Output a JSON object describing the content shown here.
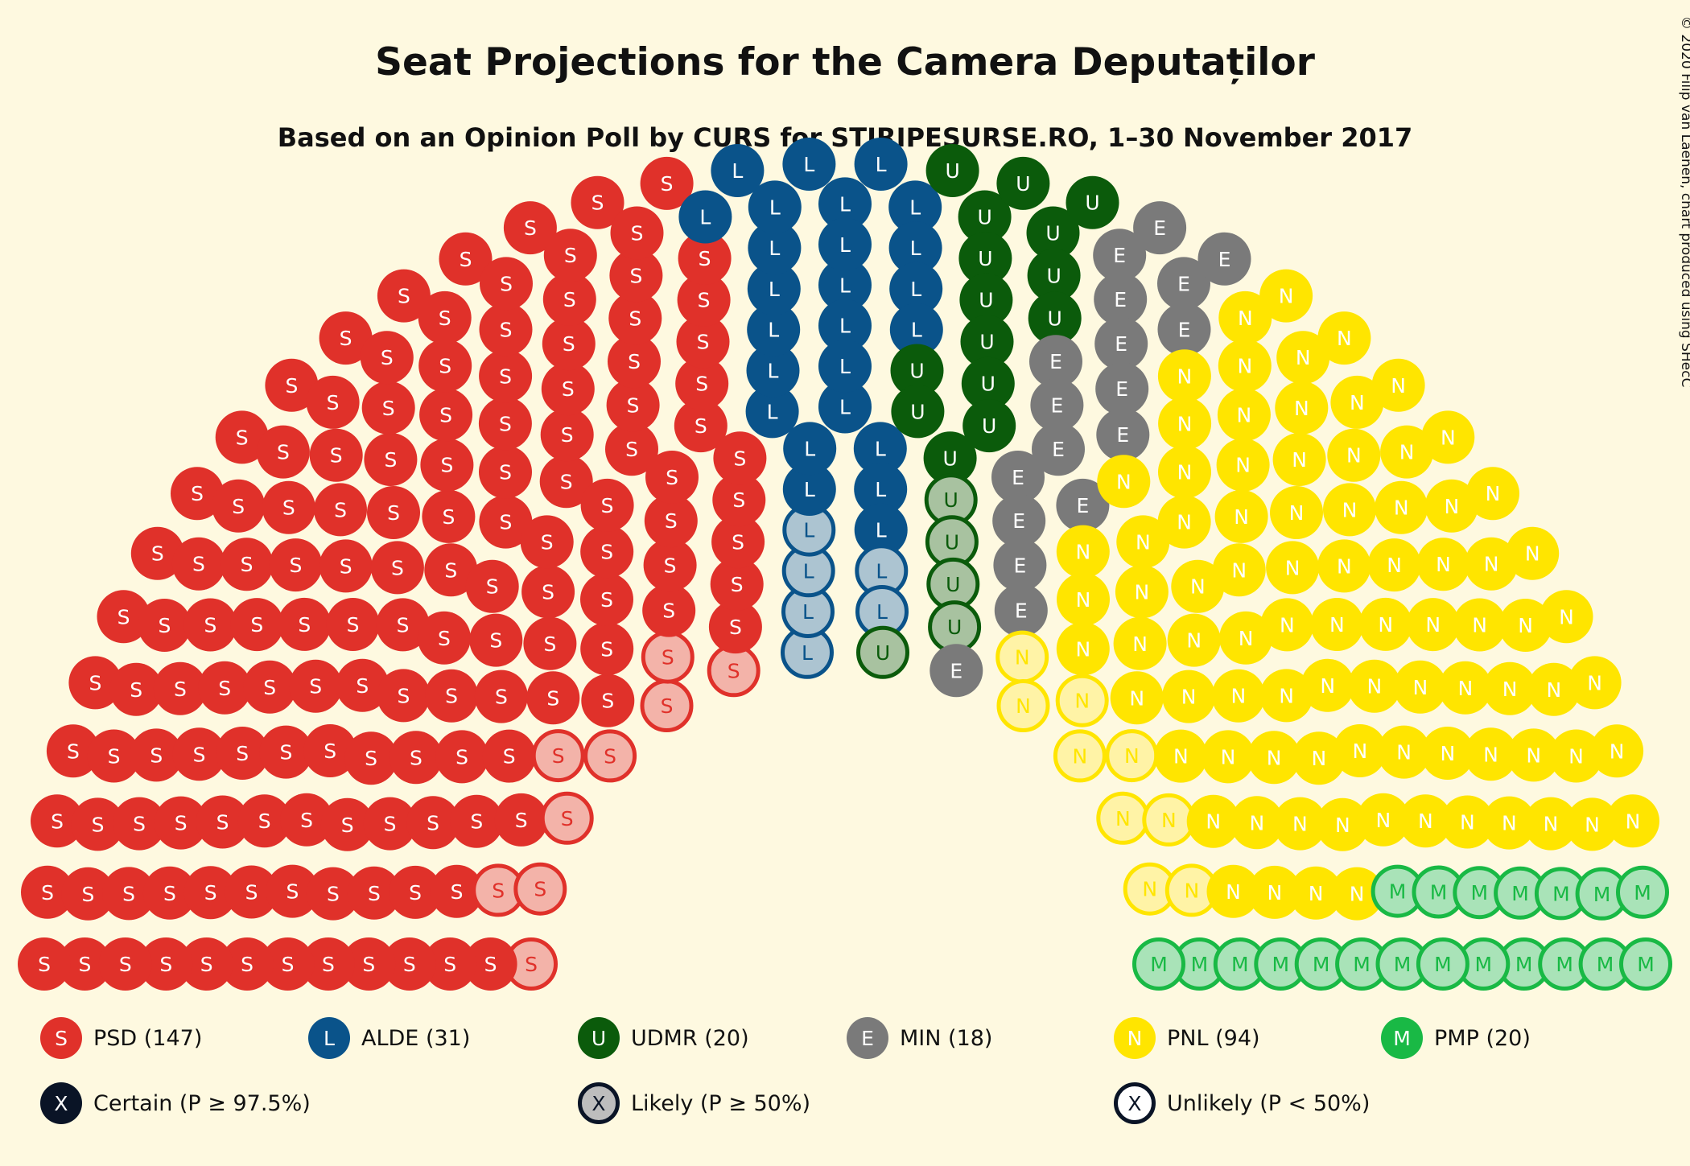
{
  "chart_data": {
    "type": "hemicycle",
    "title": "Seat Projections for the Camera Deputaților",
    "subtitle": "Based on an Opinion Poll by CURS for STIRIPESURSE.RO, 1–30 November 2017",
    "copyright": "© 2020 Filip van Laenen, chart produced using SHecC",
    "total_seats": 330,
    "parties": [
      {
        "letter": "S",
        "label": "PSD (147)",
        "seats": 147,
        "certain": 138,
        "likely": 9,
        "unlikely": 0,
        "color": "#E0312A",
        "light": "#F3B3A9",
        "text": "#FFFFFF"
      },
      {
        "letter": "L",
        "label": "ALDE (31)",
        "seats": 31,
        "certain": 25,
        "likely": 6,
        "unlikely": 0,
        "color": "#0A538A",
        "light": "#ACC4D1",
        "text": "#FFFFFF"
      },
      {
        "letter": "U",
        "label": "UDMR (20)",
        "seats": 20,
        "certain": 15,
        "likely": 5,
        "unlikely": 0,
        "color": "#0B5B0B",
        "light": "#A8C2A0",
        "text": "#FFFFFF"
      },
      {
        "letter": "E",
        "label": "MIN (18)",
        "seats": 18,
        "certain": 18,
        "likely": 0,
        "unlikely": 0,
        "color": "#7A7A7A",
        "light": "#BDBDBD",
        "text": "#FFFFFF"
      },
      {
        "letter": "N",
        "label": "PNL (94)",
        "seats": 94,
        "certain": 85,
        "likely": 9,
        "unlikely": 0,
        "color": "#FFE500",
        "light": "#FFF3A6",
        "text": "#FFFFFF"
      },
      {
        "letter": "M",
        "label": "PMP (20)",
        "seats": 20,
        "certain": 0,
        "likely": 20,
        "unlikely": 0,
        "color": "#19B945",
        "light": "#A9E3B8",
        "text": "#1E8B3A"
      }
    ],
    "probability_legend": [
      {
        "letter": "X",
        "label": "Certain (P ≥ 97.5%)",
        "style": "certain"
      },
      {
        "letter": "X",
        "label": "Likely (P ≥ 50%)",
        "style": "likely"
      },
      {
        "letter": "X",
        "label": "Unlikely (P < 50%)",
        "style": "unlikely"
      }
    ],
    "colors": {
      "background": "#FEF9E0",
      "certain": "#0A1426",
      "likely_fill": "#BDBDBD"
    }
  }
}
